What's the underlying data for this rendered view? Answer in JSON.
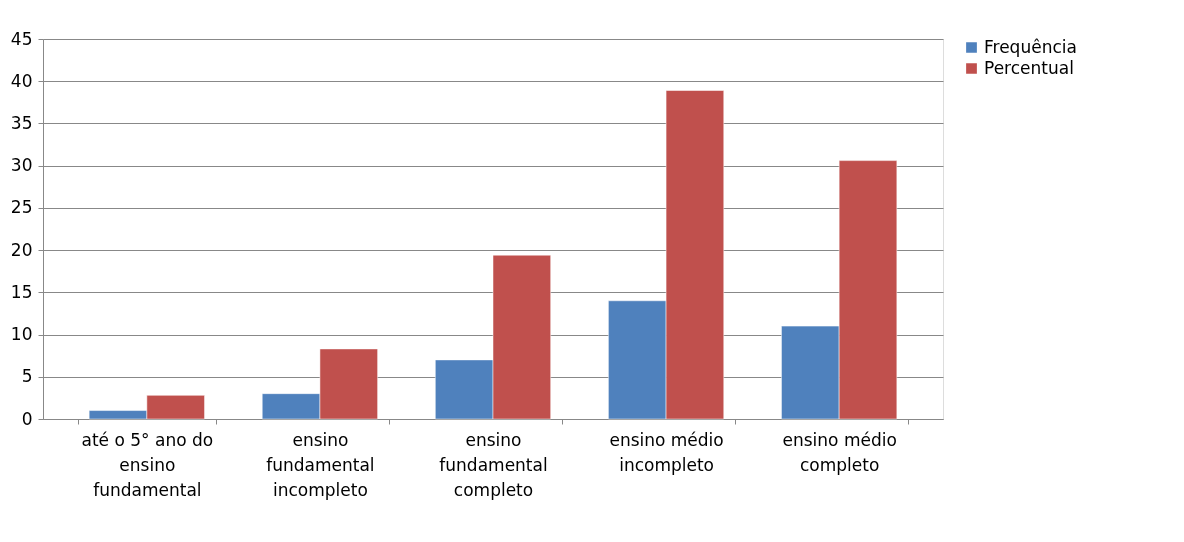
{
  "chart_data": {
    "type": "bar",
    "categories": [
      "até o 5° ano do ensino fundamental",
      "ensino fundamental incompleto",
      "ensino fundamental completo",
      "ensino médio incompleto",
      "ensino médio completo"
    ],
    "series": [
      {
        "name": "Frequência",
        "color": "#4f81bd",
        "values": [
          1,
          3,
          7,
          14,
          11
        ]
      },
      {
        "name": "Percentual",
        "color": "#c0504d",
        "values": [
          2.8,
          8.3,
          19.4,
          38.9,
          30.6
        ]
      }
    ],
    "ylim": [
      0,
      45
    ],
    "yticks": [
      0,
      5,
      10,
      15,
      20,
      25,
      30,
      35,
      40,
      45
    ],
    "grid": "y",
    "legend": "right"
  }
}
